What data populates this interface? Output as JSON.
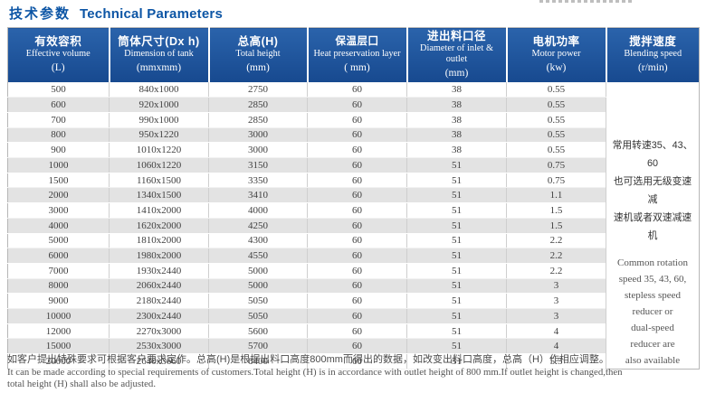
{
  "page": {
    "title_zh": "技术参数",
    "title_en": "Technical Parameters"
  },
  "table": {
    "columns": [
      {
        "zh": "有效容积",
        "en": "Effective volume",
        "unit": "(L)"
      },
      {
        "zh": "筒体尺寸(Dx h)",
        "en": "Dimension of tank",
        "unit": "(mmxmm)"
      },
      {
        "zh": "总高(H)",
        "en": "Total height",
        "unit": "(mm)"
      },
      {
        "zh": "保温层囗",
        "en": "Heat preservation layer",
        "unit": "( mm)"
      },
      {
        "zh": "进出料口径",
        "en": "Diameter of inlet & outlet",
        "unit": "(mm)"
      },
      {
        "zh": "电机功率",
        "en": "Motor power",
        "unit": "(kw)"
      },
      {
        "zh": "搅拌速度",
        "en": "Blending speed",
        "unit": "(r/min)"
      }
    ],
    "rows": [
      [
        "500",
        "840x1000",
        "2750",
        "60",
        "38",
        "0.55"
      ],
      [
        "600",
        "920x1000",
        "2850",
        "60",
        "38",
        "0.55"
      ],
      [
        "700",
        "990x1000",
        "2850",
        "60",
        "38",
        "0.55"
      ],
      [
        "800",
        "950x1220",
        "3000",
        "60",
        "38",
        "0.55"
      ],
      [
        "900",
        "1010x1220",
        "3000",
        "60",
        "38",
        "0.55"
      ],
      [
        "1000",
        "1060x1220",
        "3150",
        "60",
        "51",
        "0.75"
      ],
      [
        "1500",
        "1160x1500",
        "3350",
        "60",
        "51",
        "0.75"
      ],
      [
        "2000",
        "1340x1500",
        "3410",
        "60",
        "51",
        "1.1"
      ],
      [
        "3000",
        "1410x2000",
        "4000",
        "60",
        "51",
        "1.5"
      ],
      [
        "4000",
        "1620x2000",
        "4250",
        "60",
        "51",
        "1.5"
      ],
      [
        "5000",
        "1810x2000",
        "4300",
        "60",
        "51",
        "2.2"
      ],
      [
        "6000",
        "1980x2000",
        "4550",
        "60",
        "51",
        "2.2"
      ],
      [
        "7000",
        "1930x2440",
        "5000",
        "60",
        "51",
        "2.2"
      ],
      [
        "8000",
        "2060x2440",
        "5000",
        "60",
        "51",
        "3"
      ],
      [
        "9000",
        "2180x2440",
        "5050",
        "60",
        "51",
        "3"
      ],
      [
        "10000",
        "2300x2440",
        "5050",
        "60",
        "51",
        "3"
      ],
      [
        "12000",
        "2270x3000",
        "5600",
        "60",
        "51",
        "4"
      ],
      [
        "15000",
        "2530x3000",
        "5700",
        "60",
        "51",
        "4"
      ],
      [
        "20000",
        "2640x3660",
        "6400",
        "60",
        "51",
        "5.5"
      ]
    ],
    "blending_cell": {
      "zh": "常用转速35、43、60\n也可选用无级变速减\n速机或者双速减速机",
      "en": "Common rotation\nspeed 35, 43, 60,\nstepless speed\nreducer or\ndual-speed\nreducer are\nalso available"
    }
  },
  "notes": {
    "zh": "如客户提出特殊要求可根据客户要求定作。总高(H)是根据出料口高度800mm而得出的数据，如改变出料口高度，总高（H）作相应调整。",
    "en": "It can be made according to special requirements of customers.Total height (H) is in accordance with outlet height of 800 mm.If outlet height is changed,then\ntotal height (H) shall also be adjusted."
  },
  "colors": {
    "header_bg": "#1b55a0",
    "title_blue": "#0c55a5",
    "row_stripe": "#e3e3e3"
  }
}
